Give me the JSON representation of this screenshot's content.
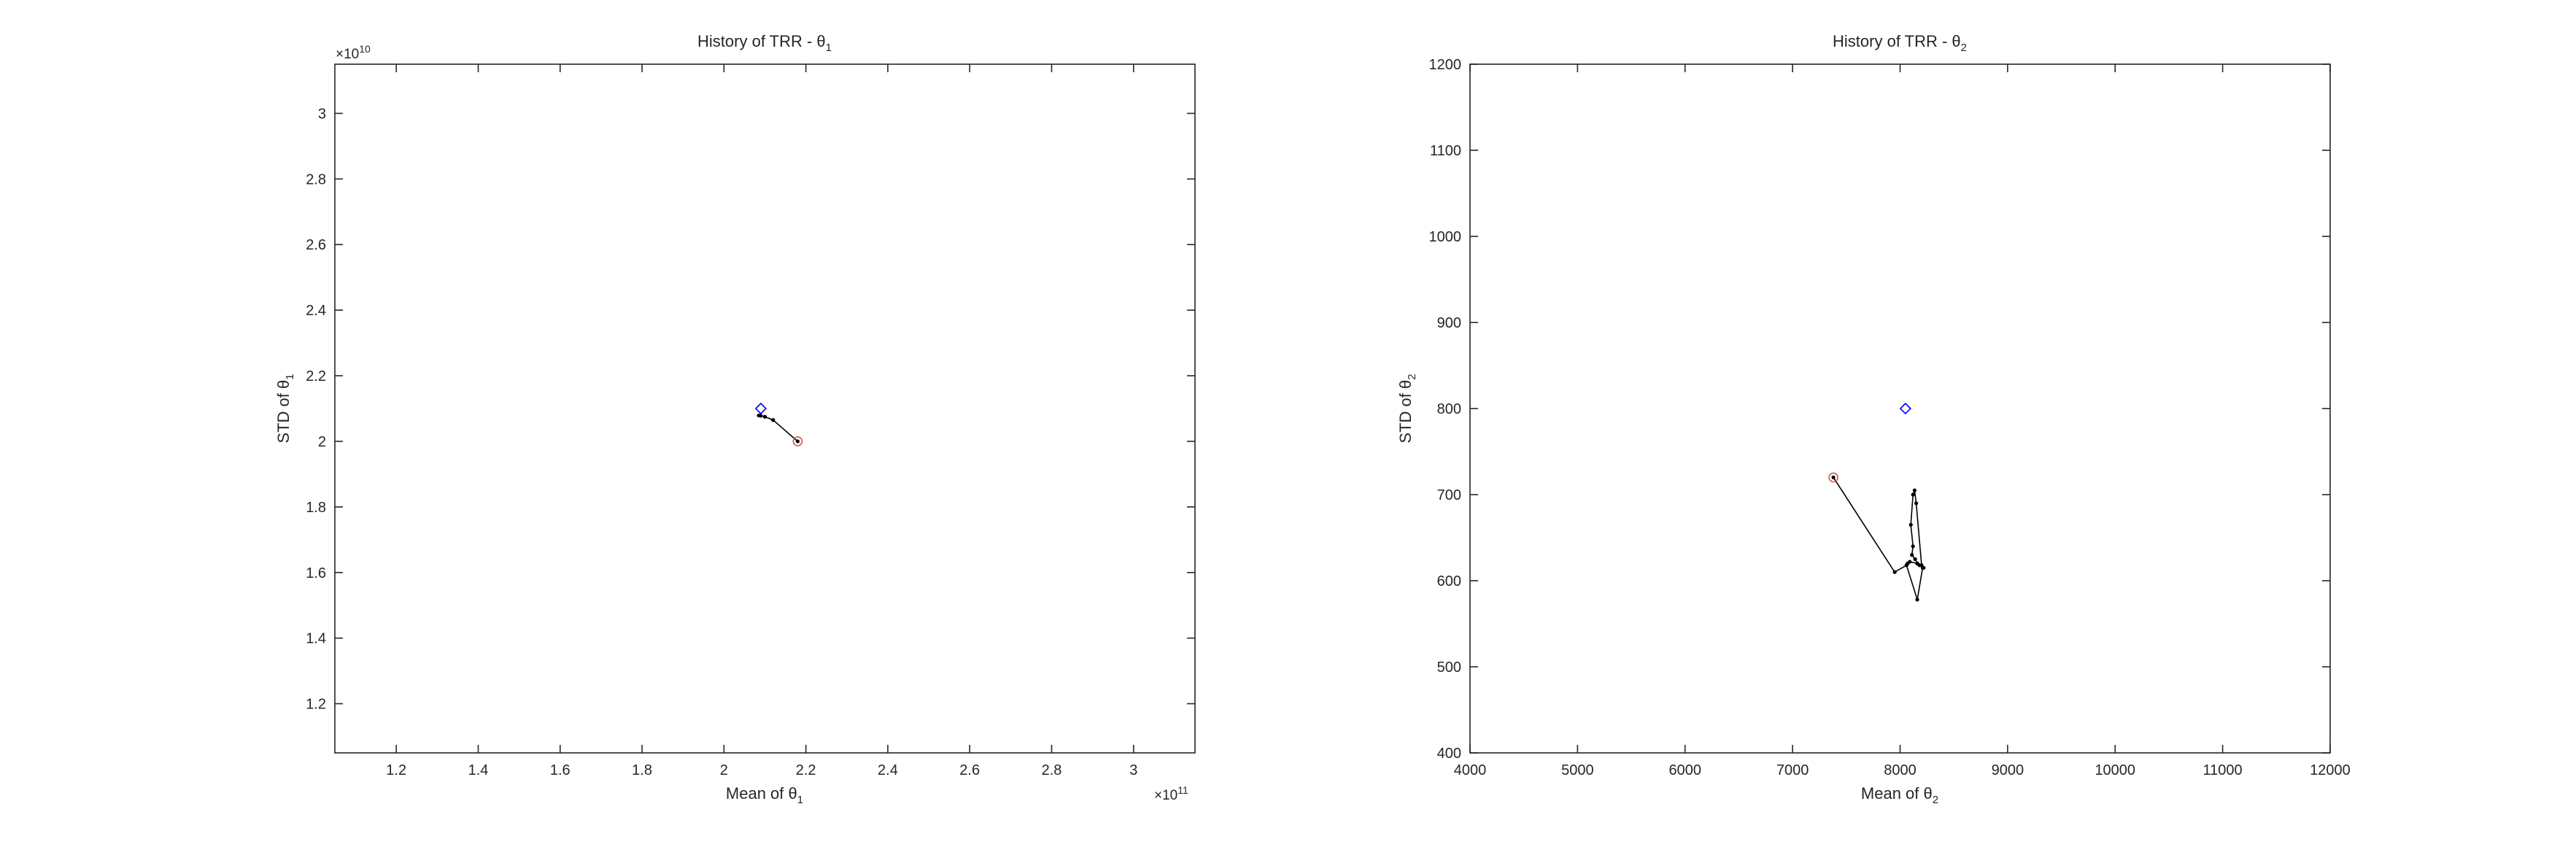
{
  "chart_data": [
    {
      "type": "line",
      "title": "History of TRR - θ₁",
      "title_main": "History of TRR - θ",
      "title_sub": "1",
      "xlabel": "Mean of θ₁",
      "xlabel_main": "Mean of θ",
      "xlabel_sub": "1",
      "ylabel": "STD of θ₁",
      "ylabel_main": "STD of θ",
      "ylabel_sub": "1",
      "x_exponent_base": "×10",
      "x_exponent": "11",
      "y_exponent_base": "×10",
      "y_exponent": "10",
      "xlim": [
        1.05,
        3.15
      ],
      "ylim": [
        1.05,
        3.15
      ],
      "x_scale": 100000000000.0,
      "y_scale": 10000000000.0,
      "xticks": [
        1.2,
        1.4,
        1.6,
        1.8,
        2,
        2.2,
        2.4,
        2.6,
        2.8,
        3
      ],
      "yticks": [
        1.2,
        1.4,
        1.6,
        1.8,
        2,
        2.2,
        2.4,
        2.6,
        2.8,
        3
      ],
      "xtick_labels": [
        "1.2",
        "1.4",
        "1.6",
        "1.8",
        "2",
        "2.2",
        "2.4",
        "2.6",
        "2.8",
        "3"
      ],
      "ytick_labels": [
        "1.2",
        "1.4",
        "1.6",
        "1.8",
        "2",
        "2.2",
        "2.4",
        "2.6",
        "2.8",
        "3"
      ],
      "grid": false,
      "legend": "none",
      "start_point": {
        "x": 2.18,
        "y": 2.0
      },
      "target_point": {
        "x": 2.09,
        "y": 2.1
      },
      "series": [
        {
          "x": [
            2.18,
            2.12,
            2.1,
            2.09,
            2.085
          ],
          "y": [
            2.0,
            2.065,
            2.075,
            2.078,
            2.079
          ]
        }
      ]
    },
    {
      "type": "line",
      "title": "History of TRR - θ₂",
      "title_main": "History of TRR - θ",
      "title_sub": "2",
      "xlabel": "Mean of θ₂",
      "xlabel_main": "Mean of θ",
      "xlabel_sub": "2",
      "ylabel": "STD of θ₂",
      "ylabel_main": "STD of θ",
      "ylabel_sub": "2",
      "xlim": [
        4000,
        12000
      ],
      "ylim": [
        400,
        1200
      ],
      "xticks": [
        4000,
        5000,
        6000,
        7000,
        8000,
        9000,
        10000,
        11000,
        12000
      ],
      "yticks": [
        400,
        500,
        600,
        700,
        800,
        900,
        1000,
        1100,
        1200
      ],
      "xtick_labels": [
        "4000",
        "5000",
        "6000",
        "7000",
        "8000",
        "9000",
        "10000",
        "11000",
        "12000"
      ],
      "ytick_labels": [
        "400",
        "500",
        "600",
        "700",
        "800",
        "900",
        "1000",
        "1100",
        "1200"
      ],
      "grid": false,
      "legend": "none",
      "start_point": {
        "x": 7380,
        "y": 720
      },
      "target_point": {
        "x": 8050,
        "y": 800
      },
      "series": [
        {
          "x": [
            7380,
            7950,
            8060,
            8160,
            8210,
            8160,
            8140,
            8110,
            8120,
            8100,
            8120,
            8135,
            8150,
            8200,
            8220,
            8180,
            8160,
            8090,
            8070
          ],
          "y": [
            720,
            610,
            618,
            578,
            615,
            620,
            625,
            630,
            640,
            665,
            700,
            705,
            690,
            618,
            615,
            618,
            620,
            622,
            620
          ]
        }
      ]
    }
  ]
}
